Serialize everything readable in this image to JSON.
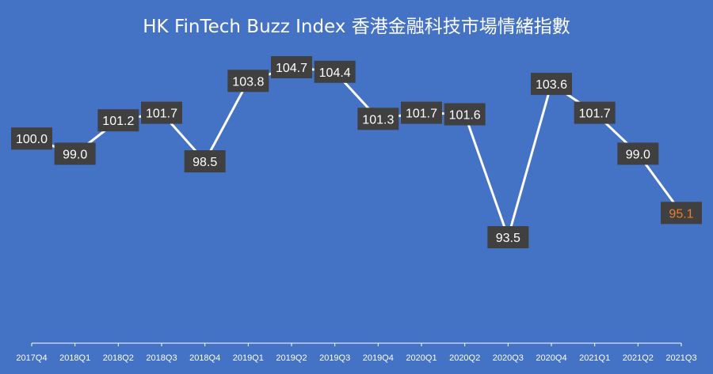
{
  "title": "HK FinTech Buzz Index 香港金融科技市場情緒指數",
  "colors": {
    "background": "#4472c4",
    "line": "#ffffff",
    "label_box": "#404040",
    "label_text": "#ffffff",
    "highlight_text": "#ed7d31"
  },
  "chart_data": {
    "type": "line",
    "title": "HK FinTech Buzz Index 香港金融科技市場情緒指數",
    "xlabel": "",
    "ylabel": "",
    "categories": [
      "2017Q4",
      "2018Q1",
      "2018Q2",
      "2018Q3",
      "2018Q4",
      "2019Q1",
      "2019Q2",
      "2019Q3",
      "2019Q4",
      "2020Q1",
      "2020Q2",
      "2020Q3",
      "2020Q4",
      "2021Q1",
      "2021Q2",
      "2021Q3"
    ],
    "labels": [
      "100.0",
      "99.0",
      "101.2",
      "101.7",
      "98.5",
      "103.8",
      "104.7",
      "104.4",
      "101.3",
      "101.7",
      "101.6",
      "93.5",
      "103.6",
      "101.7",
      "99.0",
      "95.1"
    ],
    "series": [
      {
        "values": [
          100.0,
          99.0,
          101.2,
          101.7,
          98.5,
          103.8,
          104.7,
          104.4,
          101.3,
          101.7,
          101.6,
          93.5,
          103.6,
          101.7,
          99.0,
          95.1
        ]
      }
    ],
    "highlight_last": true,
    "grid": false,
    "legend": "none"
  }
}
